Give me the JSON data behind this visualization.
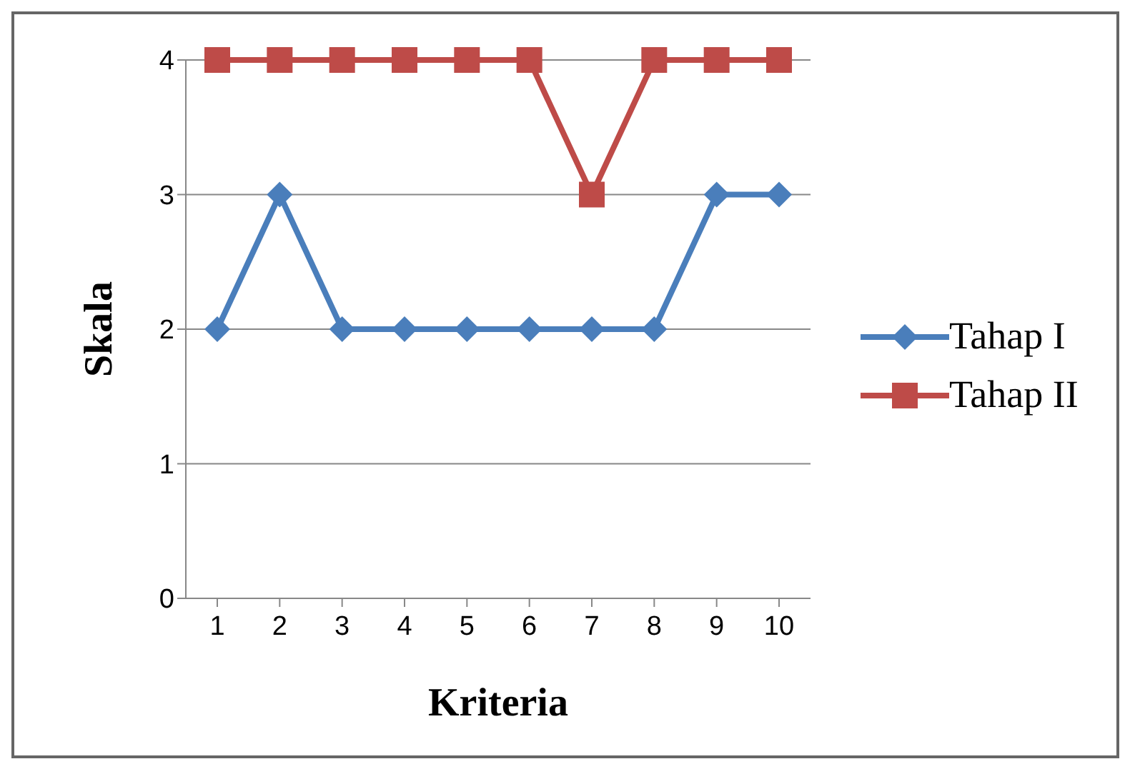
{
  "chart_data": {
    "type": "line",
    "xlabel": "Kriteria",
    "ylabel": "Skala",
    "categories": [
      "1",
      "2",
      "3",
      "4",
      "5",
      "6",
      "7",
      "8",
      "9",
      "10"
    ],
    "series": [
      {
        "name": "Tahap I",
        "color": "#4a7ebb",
        "marker": "diamond",
        "values": [
          2,
          3,
          2,
          2,
          2,
          2,
          2,
          2,
          3,
          3
        ]
      },
      {
        "name": "Tahap II",
        "color": "#be4b48",
        "marker": "square",
        "values": [
          4,
          4,
          4,
          4,
          4,
          4,
          3,
          4,
          4,
          4
        ]
      }
    ],
    "ylim": [
      0,
      4
    ],
    "yticks": [
      0,
      1,
      2,
      3,
      4
    ],
    "grid": "y",
    "legend": "right",
    "line_style": "solid"
  }
}
